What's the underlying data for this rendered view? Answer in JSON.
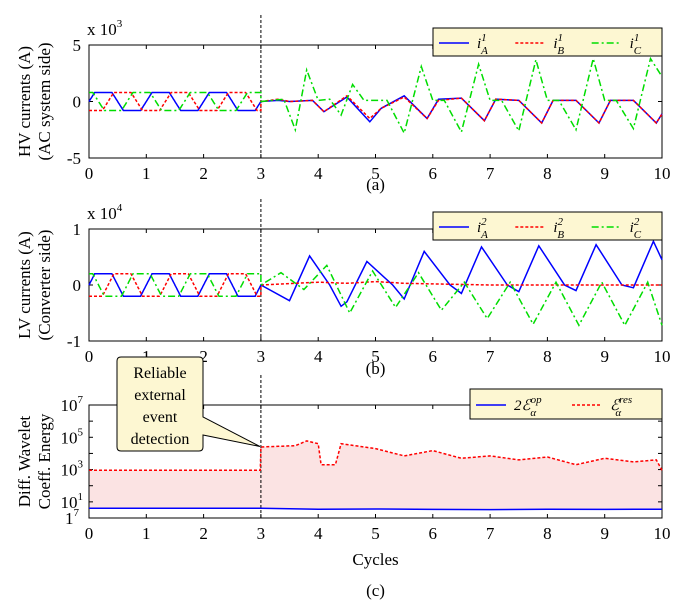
{
  "chart_data": [
    {
      "type": "line",
      "caption": "(a)",
      "ylabel_lines": [
        "HV currents (A)",
        "(AC system side)"
      ],
      "multiplier": {
        "base": "x 10",
        "exp": "3"
      },
      "xlim": [
        0,
        10
      ],
      "ylim": [
        -5,
        5
      ],
      "yticks": [
        -5,
        0,
        5
      ],
      "ytick_labels": [
        "-5",
        "0",
        "5"
      ],
      "xticks": [
        0,
        1,
        2,
        3,
        4,
        5,
        6,
        7,
        8,
        9,
        10
      ],
      "xtick_labels": [
        "0",
        "1",
        "2",
        "3",
        "4",
        "5",
        "6",
        "7",
        "8",
        "9",
        "10"
      ],
      "event_x": 3,
      "legend_position": "top-right",
      "series": [
        {
          "name": "i",
          "sup": "1",
          "sub": "A",
          "color": "#0000ff",
          "dash": "solid",
          "pre": {
            "amplitude": 0.8,
            "phase_deg": 0
          },
          "post_x": [
            3.0,
            3.3,
            3.5,
            3.9,
            4.1,
            4.5,
            4.9,
            5.1,
            5.5,
            5.9,
            6.1,
            6.5,
            6.9,
            7.1,
            7.5,
            7.9,
            8.1,
            8.5,
            8.9,
            9.1,
            9.5,
            9.9,
            10.0
          ],
          "post_y": [
            0,
            0.1,
            0,
            0.1,
            -0.9,
            0.4,
            -1.8,
            -0.6,
            0.5,
            -1.5,
            0.2,
            0.3,
            -1.7,
            0.2,
            0.1,
            -1.9,
            0.1,
            0.1,
            -1.9,
            0.1,
            0.1,
            -1.9,
            -1.1
          ]
        },
        {
          "name": "i",
          "sup": "1",
          "sub": "B",
          "color": "#ff0000",
          "dash": "dotted",
          "pre": {
            "amplitude": 0.8,
            "phase_deg": -120
          },
          "post_x": [
            3.0,
            3.3,
            3.5,
            3.9,
            4.1,
            4.5,
            4.9,
            5.1,
            5.5,
            5.9,
            6.1,
            6.5,
            6.9,
            7.1,
            7.5,
            7.9,
            8.1,
            8.5,
            8.9,
            9.1,
            9.5,
            9.9,
            10.0
          ],
          "post_y": [
            0,
            0.2,
            0,
            0.1,
            -0.9,
            0.5,
            -1.5,
            -0.6,
            0.4,
            -1.5,
            0.1,
            0.3,
            -1.7,
            0.2,
            0.1,
            -1.9,
            0.1,
            0.1,
            -1.9,
            0.1,
            0.1,
            -1.9,
            -1.1
          ]
        },
        {
          "name": "i",
          "sup": "1",
          "sub": "C",
          "color": "#00dd00",
          "dash": "dashdot",
          "pre": {
            "amplitude": 0.8,
            "phase_deg": 120
          },
          "post_x": [
            3.0,
            3.4,
            3.6,
            3.8,
            4.0,
            4.2,
            4.4,
            4.6,
            4.8,
            5.2,
            5.5,
            5.8,
            6.0,
            6.2,
            6.5,
            6.8,
            7.0,
            7.2,
            7.5,
            7.8,
            8.0,
            8.2,
            8.5,
            8.8,
            9.0,
            9.2,
            9.5,
            9.8,
            10.0
          ],
          "post_y": [
            0,
            0.2,
            -2.5,
            2.8,
            0.1,
            0.2,
            -1.2,
            1.5,
            0.1,
            0.1,
            -2.8,
            3.1,
            0.1,
            0.1,
            -2.7,
            3.3,
            0.1,
            0.1,
            -2.6,
            3.7,
            0.1,
            0.1,
            -2.5,
            3.8,
            0.1,
            0.1,
            -2.4,
            3.8,
            2.2
          ]
        }
      ]
    },
    {
      "type": "line",
      "caption": "(b)",
      "ylabel_lines": [
        "LV currents (A)",
        "(Converter side)"
      ],
      "multiplier": {
        "base": "x 10",
        "exp": "4"
      },
      "xlim": [
        0,
        10
      ],
      "ylim": [
        -1,
        1
      ],
      "yticks": [
        -1,
        0,
        1
      ],
      "ytick_labels": [
        "-1",
        "0",
        "1"
      ],
      "xticks": [
        0,
        1,
        2,
        3,
        4,
        5,
        6,
        7,
        8,
        9,
        10
      ],
      "xtick_labels": [
        "0",
        "1",
        "2",
        "3",
        "4",
        "5",
        "6",
        "7",
        "8",
        "9",
        "10"
      ],
      "event_x": 3,
      "legend_position": "top-right",
      "series": [
        {
          "name": "i",
          "sup": "2",
          "sub": "A",
          "color": "#0000ff",
          "dash": "solid",
          "pre": {
            "amplitude": 0.2,
            "phase_deg": 0
          },
          "post_x": [
            3.0,
            3.5,
            3.85,
            4.2,
            4.4,
            4.5,
            4.85,
            5.3,
            5.5,
            5.85,
            6.3,
            6.5,
            6.85,
            7.3,
            7.5,
            7.85,
            8.3,
            8.5,
            8.85,
            9.3,
            9.5,
            9.85,
            10.0
          ],
          "post_y": [
            0,
            -0.28,
            0.52,
            0,
            -0.38,
            -0.3,
            0.42,
            0,
            -0.25,
            0.6,
            0,
            -0.15,
            0.68,
            0,
            -0.12,
            0.7,
            0,
            -0.1,
            0.72,
            0,
            -0.05,
            0.78,
            0.45
          ]
        },
        {
          "name": "i",
          "sup": "2",
          "sub": "B",
          "color": "#ff0000",
          "dash": "dotted",
          "pre": {
            "amplitude": 0.2,
            "phase_deg": -120
          },
          "post_x": [
            3.0,
            4.0,
            4.5,
            5.0,
            5.5,
            6.0,
            7.0,
            8.0,
            9.0,
            10.0
          ],
          "post_y": [
            0,
            0.05,
            0.03,
            0.06,
            0.03,
            0.02,
            0,
            0,
            0,
            0
          ]
        },
        {
          "name": "i",
          "sup": "2",
          "sub": "C",
          "color": "#00dd00",
          "dash": "dashdot",
          "pre": {
            "amplitude": 0.2,
            "phase_deg": 120
          },
          "post_x": [
            3.0,
            3.35,
            3.75,
            4.15,
            4.55,
            4.95,
            5.35,
            5.75,
            6.15,
            6.55,
            6.95,
            7.35,
            7.75,
            8.15,
            8.55,
            8.95,
            9.35,
            9.75,
            10.0
          ],
          "post_y": [
            0,
            0.22,
            -0.08,
            0.35,
            -0.5,
            0.25,
            -0.4,
            0.22,
            -0.45,
            0.05,
            -0.6,
            0.05,
            -0.7,
            0.05,
            -0.72,
            0.05,
            -0.72,
            0.05,
            -0.72
          ]
        }
      ]
    },
    {
      "type": "line",
      "caption": "(c)",
      "ylabel_lines": [
        "Diff. Wavelet",
        "Coeff. Energy"
      ],
      "ylog": true,
      "xlim": [
        0,
        10
      ],
      "ylim": [
        1,
        10000000
      ],
      "ytick_labels": [
        {
          "base": "10",
          "exp": "1",
          "value": 10
        },
        {
          "base": "10",
          "exp": "3",
          "value": 1000
        },
        {
          "base": "10",
          "exp": "5",
          "value": 100000
        },
        {
          "base": "10",
          "exp": "7",
          "value": 10000000
        }
      ],
      "ytick_corner": {
        "base": "1",
        "exp": "7"
      },
      "xlabel": "Cycles",
      "xticks": [
        0,
        1,
        2,
        3,
        4,
        5,
        6,
        7,
        8,
        9,
        10
      ],
      "xtick_labels": [
        "0",
        "1",
        "2",
        "3",
        "4",
        "5",
        "6",
        "7",
        "8",
        "9",
        "10"
      ],
      "event_x": 3,
      "legend_position": "top-right",
      "series": [
        {
          "name": "2ℰ",
          "sup": "op",
          "sub": "α",
          "color": "#0000ff",
          "dash": "solid",
          "x": [
            0,
            3,
            4,
            5,
            6,
            7,
            8,
            9,
            10
          ],
          "y": [
            4,
            4,
            3.5,
            3.6,
            3.4,
            3.3,
            3.5,
            3.4,
            3.5
          ]
        },
        {
          "name": "ℰ",
          "sup": "res",
          "sub": "α",
          "color": "#ff0000",
          "dash": "dotted",
          "x": [
            0,
            2.99,
            3.0,
            3.6,
            3.8,
            4.0,
            4.05,
            4.3,
            4.4,
            5.0,
            5.5,
            6.0,
            6.5,
            7.0,
            7.5,
            8.0,
            8.5,
            9.0,
            9.5,
            9.9,
            10.0
          ],
          "y": [
            900,
            900,
            25000,
            30000,
            60000,
            40000,
            2000,
            2000,
            40000,
            20000,
            7000,
            15000,
            5000,
            7000,
            4000,
            6000,
            2000,
            5000,
            3000,
            4000,
            900
          ]
        }
      ]
    }
  ],
  "annotation": {
    "lines": [
      "Reliable",
      "external",
      "event",
      "detection"
    ]
  }
}
